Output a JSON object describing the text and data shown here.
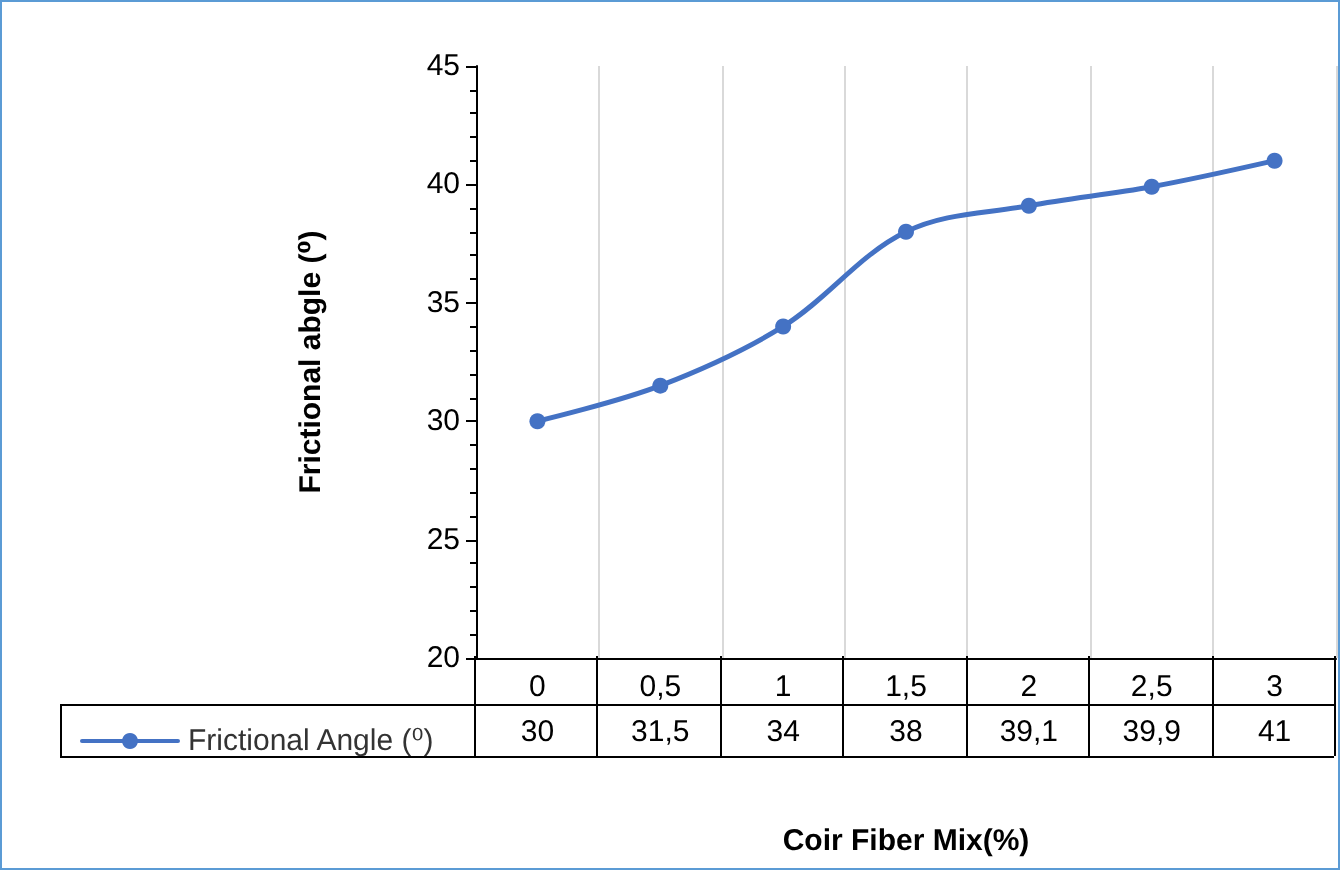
{
  "chart_data": {
    "type": "line",
    "xlabel": "Coir Fiber Mix(%)",
    "ylabel": "Frictional abgle (⁰)",
    "categories": [
      "0",
      "0,5",
      "1",
      "1,5",
      "2",
      "2,5",
      "3"
    ],
    "series": [
      {
        "name": "Frictional Angle (⁰)",
        "color": "#4472c4",
        "values": [
          30,
          31.5,
          34,
          38,
          39.1,
          39.9,
          41
        ],
        "value_labels": [
          "30",
          "31,5",
          "34",
          "38",
          "39,1",
          "39,9",
          "41"
        ]
      }
    ],
    "ylim": [
      20,
      45
    ],
    "yticks": [
      20,
      25,
      30,
      35,
      40,
      45
    ],
    "grid": "x",
    "legend": "bottom left",
    "marker": "circle",
    "line_style": "solid",
    "data_labels": true
  }
}
